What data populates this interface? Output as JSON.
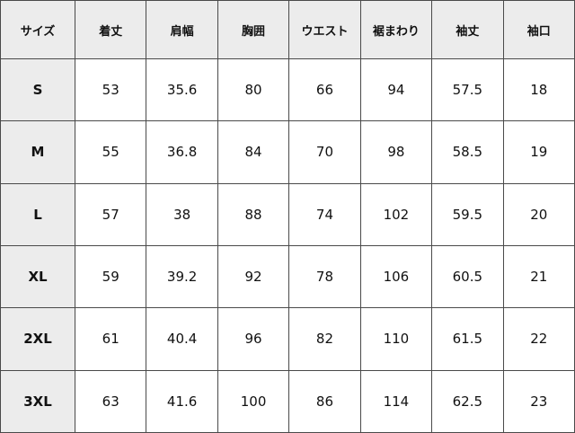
{
  "headers": [
    "サイズ",
    "着丈",
    "肩幅",
    "胸囲",
    "ウエスト",
    "裾まわり",
    "袖丈",
    "袖口"
  ],
  "rows": [
    [
      "S",
      "53",
      "35.6",
      "80",
      "66",
      "94",
      "57.5",
      "18"
    ],
    [
      "M",
      "55",
      "36.8",
      "84",
      "70",
      "98",
      "58.5",
      "19"
    ],
    [
      "L",
      "57",
      "38",
      "88",
      "74",
      "102",
      "59.5",
      "20"
    ],
    [
      "XL",
      "59",
      "39.2",
      "92",
      "78",
      "106",
      "60.5",
      "21"
    ],
    [
      "2XL",
      "61",
      "40.4",
      "96",
      "82",
      "110",
      "61.5",
      "22"
    ],
    [
      "3XL",
      "63",
      "41.6",
      "100",
      "86",
      "114",
      "62.5",
      "23"
    ]
  ]
}
